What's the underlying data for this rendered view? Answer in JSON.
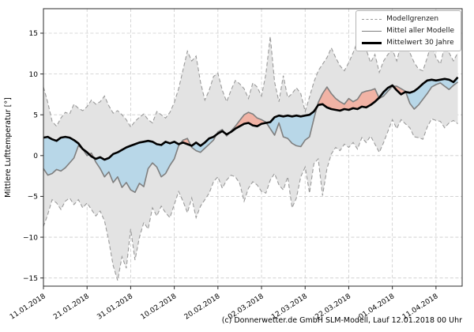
{
  "figure": {
    "ylabel": "Mittlere Lufttemperatur [°]",
    "attribution": "(c) Donnerwetter.de GmbH SLM-Modell, Lauf 12.01.2018 00 Uhr"
  },
  "legend": {
    "items": [
      {
        "label": "Modellgrenzen",
        "style": "dashed-gray"
      },
      {
        "label": "Mittel aller Modelle",
        "style": "solid-gray"
      },
      {
        "label": "Mittelwert 30 Jahre",
        "style": "solid-black-thick"
      }
    ]
  },
  "chart_data": {
    "type": "line",
    "title": "",
    "xlabel": "",
    "ylabel": "Mittlere Lufttemperatur [°]",
    "x_unit": "day",
    "x_start_date": "11.01.2018",
    "xlim": [
      0,
      96
    ],
    "ylim": [
      -16,
      18
    ],
    "grid": true,
    "legend_position": "top-right",
    "x_ticks": [
      {
        "day": 0,
        "label": "11.01.2018"
      },
      {
        "day": 10,
        "label": "21.01.2018"
      },
      {
        "day": 20,
        "label": "31.01.2018"
      },
      {
        "day": 30,
        "label": "10.02.2018"
      },
      {
        "day": 40,
        "label": "20.02.2018"
      },
      {
        "day": 50,
        "label": "02.03.2018"
      },
      {
        "day": 60,
        "label": "12.03.2018"
      },
      {
        "day": 70,
        "label": "22.03.2018"
      },
      {
        "day": 80,
        "label": "01.04.2018"
      },
      {
        "day": 90,
        "label": "11.04.2018"
      }
    ],
    "y_ticks": [
      {
        "v": 15,
        "label": "15"
      },
      {
        "v": 10,
        "label": "10"
      },
      {
        "v": 5,
        "label": "5"
      },
      {
        "v": 0,
        "label": "0"
      },
      {
        "v": -5,
        "label": "−5"
      },
      {
        "v": -10,
        "label": "−10"
      },
      {
        "v": -15,
        "label": "−15"
      }
    ],
    "fills": {
      "band": "#e3e3e3",
      "model_below_climate": "#b8d7e8",
      "model_above_climate": "#f1b3a5"
    },
    "series": [
      {
        "name": "Modellgrenzen (obere Grenze)",
        "role": "upper_bound",
        "style": "dashed",
        "color": "#9a9a9a",
        "width": 1.1,
        "values": [
          8.4,
          6.5,
          4.2,
          3.6,
          4.6,
          5.3,
          5.1,
          6.3,
          5.8,
          5.5,
          6.0,
          6.8,
          6.3,
          6.6,
          7.3,
          6.1,
          5.2,
          5.5,
          5.0,
          4.4,
          3.5,
          4.2,
          4.7,
          5.1,
          4.4,
          4.0,
          5.4,
          5.0,
          4.6,
          5.3,
          6.5,
          8.2,
          10.5,
          12.8,
          11.6,
          12.2,
          9.0,
          6.8,
          8.0,
          9.7,
          10.1,
          8.0,
          6.6,
          8.0,
          9.2,
          8.8,
          8.2,
          7.0,
          8.9,
          8.4,
          7.3,
          10.0,
          14.6,
          9.0,
          6.6,
          9.8,
          7.1,
          7.6,
          8.3,
          7.6,
          5.4,
          7.2,
          9.0,
          10.4,
          11.2,
          12.0,
          13.2,
          12.0,
          11.0,
          10.4,
          11.4,
          12.6,
          14.0,
          16.3,
          13.0,
          11.4,
          12.4,
          10.2,
          11.6,
          12.4,
          13.0,
          11.6,
          13.6,
          14.5,
          12.6,
          11.4,
          10.6,
          10.4,
          12.0,
          13.8,
          12.0,
          11.2,
          13.4,
          12.6,
          11.6,
          12.6
        ]
      },
      {
        "name": "Modellgrenzen (untere Grenze)",
        "role": "lower_bound",
        "style": "dashed",
        "color": "#9a9a9a",
        "width": 1.1,
        "values": [
          -8.7,
          -7.2,
          -5.4,
          -5.8,
          -6.6,
          -5.6,
          -5.2,
          -6.0,
          -5.4,
          -6.4,
          -5.8,
          -6.6,
          -7.4,
          -6.8,
          -8.0,
          -10.5,
          -13.5,
          -15.3,
          -12.4,
          -13.8,
          -9.0,
          -12.8,
          -10.0,
          -8.2,
          -9.0,
          -6.4,
          -7.4,
          -6.2,
          -7.0,
          -7.6,
          -6.0,
          -4.4,
          -5.6,
          -7.0,
          -5.2,
          -7.6,
          -6.2,
          -5.4,
          -4.6,
          -3.2,
          -2.6,
          -4.0,
          -3.0,
          -2.4,
          -2.6,
          -3.4,
          -5.6,
          -4.0,
          -3.2,
          -3.6,
          -4.4,
          -4.6,
          -3.0,
          -2.2,
          -3.6,
          -4.2,
          -2.6,
          -6.4,
          -5.2,
          -2.6,
          -1.4,
          -4.6,
          -1.0,
          -0.4,
          -4.9,
          -1.6,
          0.2,
          1.0,
          0.6,
          1.4,
          1.0,
          1.6,
          0.8,
          2.2,
          1.6,
          2.4,
          1.4,
          0.4,
          1.6,
          3.0,
          4.4,
          3.3,
          4.4,
          3.9,
          3.4,
          2.3,
          2.2,
          2.0,
          3.5,
          4.5,
          4.3,
          4.2,
          3.4,
          4.0,
          4.3,
          3.9
        ]
      },
      {
        "name": "Mittel aller Modelle",
        "role": "model_mean",
        "style": "solid",
        "color": "#7f7f7f",
        "width": 1.6,
        "values": [
          -1.6,
          -2.4,
          -2.2,
          -1.7,
          -1.9,
          -1.5,
          -0.9,
          -0.3,
          1.2,
          0.8,
          0.0,
          0.3,
          -0.8,
          -1.6,
          -2.6,
          -2.0,
          -3.3,
          -2.6,
          -3.9,
          -3.3,
          -4.2,
          -4.5,
          -3.4,
          -3.8,
          -1.6,
          -0.9,
          -1.4,
          -2.6,
          -2.2,
          -1.2,
          -0.4,
          1.2,
          1.9,
          2.1,
          1.0,
          0.6,
          0.4,
          0.9,
          1.4,
          1.9,
          2.9,
          3.2,
          2.4,
          3.0,
          3.6,
          4.3,
          5.0,
          5.3,
          5.1,
          4.6,
          4.4,
          4.1,
          3.3,
          2.5,
          4.0,
          2.3,
          2.1,
          1.5,
          1.2,
          1.1,
          1.9,
          2.3,
          4.5,
          6.5,
          7.6,
          8.4,
          7.6,
          7.0,
          6.6,
          6.3,
          7.0,
          6.6,
          6.9,
          7.7,
          7.9,
          8.0,
          8.2,
          7.0,
          7.3,
          7.9,
          8.5,
          8.5,
          8.2,
          7.9,
          6.4,
          5.7,
          6.2,
          6.9,
          7.6,
          8.4,
          8.7,
          8.9,
          8.5,
          8.1,
          8.6,
          9.0
        ]
      },
      {
        "name": "Mittelwert 30 Jahre",
        "role": "climate_mean",
        "style": "solid-thick",
        "color": "#000000",
        "width": 2.6,
        "values": [
          2.2,
          2.3,
          2.0,
          1.8,
          2.2,
          2.3,
          2.2,
          1.9,
          1.5,
          0.8,
          0.4,
          -0.1,
          -0.4,
          -0.2,
          -0.5,
          -0.3,
          0.2,
          0.4,
          0.7,
          1.0,
          1.2,
          1.4,
          1.6,
          1.7,
          1.8,
          1.7,
          1.4,
          1.3,
          1.7,
          1.5,
          1.7,
          1.4,
          1.6,
          1.4,
          1.2,
          1.6,
          1.2,
          1.6,
          2.1,
          2.3,
          2.7,
          3.0,
          2.6,
          2.9,
          3.3,
          3.6,
          3.9,
          4.0,
          3.7,
          3.6,
          3.9,
          4.0,
          4.1,
          4.7,
          4.9,
          4.8,
          4.9,
          4.8,
          4.9,
          4.8,
          4.9,
          5.0,
          5.4,
          6.2,
          6.3,
          5.9,
          5.7,
          5.6,
          5.5,
          5.7,
          5.6,
          5.8,
          5.7,
          6.0,
          5.9,
          6.2,
          6.6,
          7.1,
          7.8,
          8.3,
          8.6,
          8.0,
          7.5,
          7.8,
          7.7,
          7.9,
          8.3,
          8.8,
          9.2,
          9.3,
          9.2,
          9.3,
          9.4,
          9.3,
          9.0,
          9.6
        ]
      }
    ]
  }
}
